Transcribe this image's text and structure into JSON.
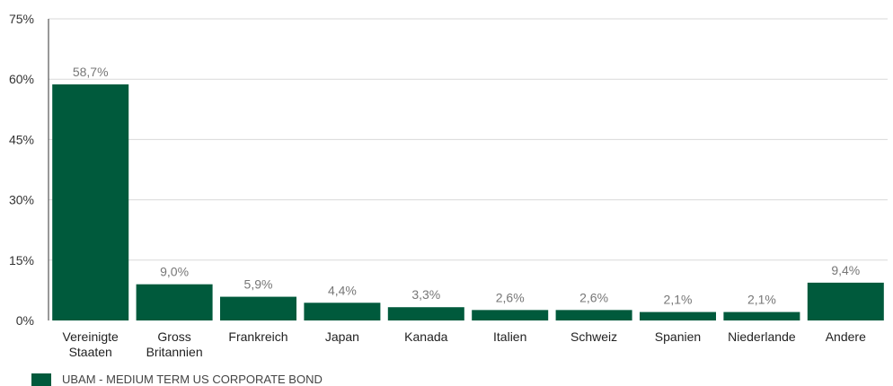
{
  "chart_data": {
    "type": "bar",
    "categories": [
      "Vereinigte Staaten",
      "Gross Britannien",
      "Frankreich",
      "Japan",
      "Kanada",
      "Italien",
      "Schweiz",
      "Spanien",
      "Niederlande",
      "Andere"
    ],
    "category_lines": [
      [
        "Vereinigte",
        "Staaten"
      ],
      [
        "Gross",
        "Britannien"
      ],
      [
        "Frankreich"
      ],
      [
        "Japan"
      ],
      [
        "Kanada"
      ],
      [
        "Italien"
      ],
      [
        "Schweiz"
      ],
      [
        "Spanien"
      ],
      [
        "Niederlande"
      ],
      [
        "Andere"
      ]
    ],
    "series": [
      {
        "name": "UBAM - MEDIUM TERM US CORPORATE BOND",
        "values": [
          58.7,
          9.0,
          5.9,
          4.4,
          3.3,
          2.6,
          2.6,
          2.1,
          2.1,
          9.4
        ]
      }
    ],
    "data_labels": [
      "58,7%",
      "9,0%",
      "5,9%",
      "4,4%",
      "3,3%",
      "2,6%",
      "2,6%",
      "2,1%",
      "2,1%",
      "9,4%"
    ],
    "y_ticks": [
      0,
      15,
      30,
      45,
      60,
      75
    ],
    "y_tick_labels": [
      "0%",
      "15%",
      "30%",
      "45%",
      "60%",
      "75%"
    ],
    "ylim": [
      0,
      75
    ],
    "grid": true,
    "legend_position": "bottom-left",
    "colors": {
      "bar": "#005a3c",
      "grid": "#d9d9d9",
      "axis": "#333333"
    }
  },
  "legend": {
    "label": "UBAM - MEDIUM TERM US CORPORATE BOND"
  }
}
